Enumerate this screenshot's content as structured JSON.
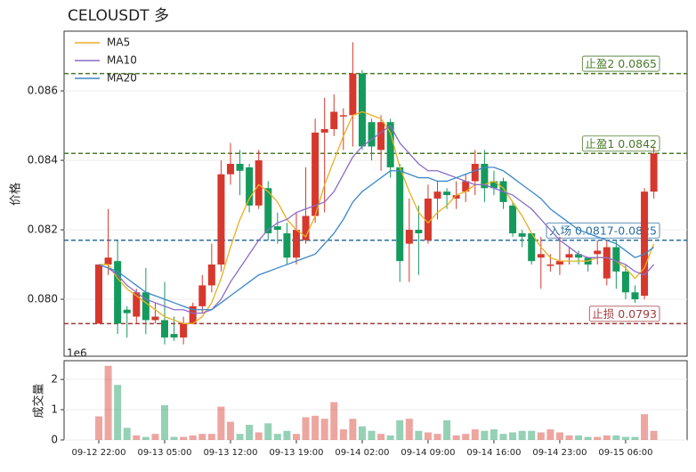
{
  "chart_data": {
    "type": "candlestick",
    "title": "CELOUSDT  多",
    "y_label": "价格",
    "volume_label": "成交量",
    "volume_offset": "1e6",
    "categories": [
      "09-12 22:00",
      null,
      null,
      null,
      null,
      null,
      null,
      "09-13 05:00",
      null,
      null,
      null,
      null,
      null,
      null,
      "09-13 12:00",
      null,
      null,
      null,
      null,
      null,
      null,
      "09-13 19:00",
      null,
      null,
      null,
      null,
      null,
      null,
      "09-14 02:00",
      null,
      null,
      null,
      null,
      null,
      null,
      "09-14 09:00",
      null,
      null,
      null,
      null,
      null,
      null,
      "09-14 16:00",
      null,
      null,
      null,
      null,
      null,
      null,
      "09-14 23:00",
      null,
      null,
      null,
      null,
      null,
      null,
      "09-15 06:00",
      null,
      null,
      null
    ],
    "open": [
      0.0793,
      0.081,
      0.0811,
      0.0797,
      0.0795,
      0.0802,
      0.0794,
      0.0794,
      0.079,
      0.0789,
      0.0793,
      0.0798,
      0.0804,
      0.081,
      0.0836,
      0.0839,
      0.0838,
      0.0827,
      0.0832,
      0.0821,
      0.0819,
      0.0812,
      0.0817,
      0.0824,
      0.0848,
      0.0849,
      0.0853,
      0.0853,
      0.0865,
      0.0851,
      0.0843,
      0.0851,
      0.0838,
      0.0816,
      0.082,
      0.0817,
      0.0829,
      0.0831,
      0.0829,
      0.0831,
      0.0834,
      0.0839,
      0.0834,
      0.0834,
      0.0827,
      0.0819,
      0.0819,
      0.0812,
      0.081,
      0.081,
      0.0812,
      0.0813,
      0.0812,
      0.0813,
      0.0806,
      0.0815,
      0.0808,
      0.0802,
      0.0801,
      0.0831
    ],
    "high": [
      0.081,
      0.0826,
      0.0817,
      0.0798,
      0.0803,
      0.0809,
      0.0799,
      0.0805,
      0.0795,
      0.0795,
      0.0799,
      0.0807,
      0.0816,
      0.084,
      0.0845,
      0.0843,
      0.0839,
      0.0843,
      0.0834,
      0.0825,
      0.0822,
      0.0825,
      0.0838,
      0.0852,
      0.0858,
      0.0859,
      0.0855,
      0.0874,
      0.0866,
      0.0852,
      0.0853,
      0.0852,
      0.0839,
      0.0829,
      0.0827,
      0.0833,
      0.0834,
      0.0832,
      0.0834,
      0.0836,
      0.0843,
      0.0843,
      0.0837,
      0.0835,
      0.0828,
      0.082,
      0.0819,
      0.0818,
      0.0813,
      0.0818,
      0.0815,
      0.0814,
      0.0812,
      0.0817,
      0.0817,
      0.0817,
      0.081,
      0.0804,
      0.0832,
      0.0844
    ],
    "low": [
      0.0793,
      0.0807,
      0.079,
      0.0789,
      0.0793,
      0.079,
      0.0793,
      0.0787,
      0.0788,
      0.0787,
      0.0793,
      0.0796,
      0.0802,
      0.0808,
      0.0833,
      0.083,
      0.0825,
      0.0826,
      0.0817,
      0.0816,
      0.081,
      0.081,
      0.0816,
      0.0822,
      0.0825,
      0.0847,
      0.0843,
      0.0844,
      0.0843,
      0.084,
      0.0837,
      0.0835,
      0.0805,
      0.0805,
      0.0807,
      0.0816,
      0.0823,
      0.0826,
      0.0826,
      0.0828,
      0.083,
      0.0828,
      0.083,
      0.0826,
      0.0818,
      0.0815,
      0.081,
      0.0803,
      0.0808,
      0.0807,
      0.081,
      0.081,
      0.0808,
      0.081,
      0.0804,
      0.0803,
      0.08,
      0.0799,
      0.08,
      0.0829
    ],
    "close": [
      0.081,
      0.0812,
      0.0793,
      0.0796,
      0.0802,
      0.0794,
      0.0795,
      0.0789,
      0.0789,
      0.0793,
      0.0798,
      0.0804,
      0.081,
      0.0836,
      0.0839,
      0.0837,
      0.0827,
      0.084,
      0.0819,
      0.082,
      0.0812,
      0.082,
      0.0824,
      0.0848,
      0.0849,
      0.0854,
      0.0853,
      0.0865,
      0.0844,
      0.0844,
      0.0851,
      0.0838,
      0.0811,
      0.082,
      0.0819,
      0.0829,
      0.0831,
      0.083,
      0.083,
      0.0834,
      0.0839,
      0.0832,
      0.0832,
      0.0828,
      0.0819,
      0.0818,
      0.0811,
      0.0813,
      0.081,
      0.0811,
      0.0813,
      0.0812,
      0.081,
      0.0814,
      0.0815,
      0.0808,
      0.0802,
      0.08,
      0.0831,
      0.0842
    ],
    "volume": [
      0.78,
      2.45,
      1.82,
      0.4,
      0.15,
      0.1,
      0.2,
      1.15,
      0.1,
      0.1,
      0.15,
      0.2,
      0.2,
      1.1,
      0.6,
      0.2,
      0.5,
      0.25,
      0.55,
      0.2,
      0.3,
      0.2,
      0.75,
      0.8,
      0.7,
      1.25,
      0.35,
      0.7,
      0.45,
      0.3,
      0.2,
      0.15,
      0.65,
      0.7,
      0.3,
      0.25,
      0.2,
      0.65,
      0.15,
      0.2,
      0.35,
      0.3,
      0.35,
      0.2,
      0.25,
      0.3,
      0.3,
      0.25,
      0.35,
      0.25,
      0.15,
      0.15,
      0.1,
      0.1,
      0.15,
      0.15,
      0.1,
      0.1,
      0.85,
      0.3
    ],
    "up_color": "#d6382d",
    "down_color": "#149a5c",
    "series": [
      {
        "name": "MA5",
        "color": "#e8b020",
        "values": [
          0.081,
          0.081,
          0.0806,
          0.0803,
          0.0801,
          0.0799,
          0.0797,
          0.0795,
          0.0794,
          0.0793,
          0.0793,
          0.0795,
          0.0799,
          0.0806,
          0.0815,
          0.0823,
          0.0829,
          0.0833,
          0.0831,
          0.0828,
          0.0823,
          0.082,
          0.0818,
          0.0824,
          0.0833,
          0.084,
          0.0847,
          0.0853,
          0.0854,
          0.0853,
          0.0852,
          0.0848,
          0.0838,
          0.0831,
          0.0825,
          0.0822,
          0.0825,
          0.0827,
          0.083,
          0.0831,
          0.0833,
          0.0833,
          0.0834,
          0.0832,
          0.0828,
          0.0824,
          0.0819,
          0.0815,
          0.0812,
          0.0811,
          0.0811,
          0.0811,
          0.0811,
          0.0812,
          0.0812,
          0.0811,
          0.0809,
          0.0806,
          0.0809,
          0.0816
        ]
      },
      {
        "name": "MA10",
        "color": "#8a6cc8",
        "values": [
          0.081,
          0.0809,
          0.0807,
          0.0804,
          0.0802,
          0.08,
          0.0799,
          0.0798,
          0.0797,
          0.0797,
          0.0796,
          0.0796,
          0.0797,
          0.08,
          0.0805,
          0.0809,
          0.0813,
          0.0817,
          0.082,
          0.0822,
          0.0823,
          0.0825,
          0.0826,
          0.0827,
          0.0828,
          0.0831,
          0.0836,
          0.0841,
          0.0844,
          0.0846,
          0.0848,
          0.085,
          0.0845,
          0.0842,
          0.0839,
          0.0837,
          0.0837,
          0.0836,
          0.0835,
          0.0834,
          0.0833,
          0.0833,
          0.0832,
          0.0831,
          0.083,
          0.0828,
          0.0826,
          0.0823,
          0.082,
          0.0817,
          0.0815,
          0.0813,
          0.0812,
          0.0812,
          0.0812,
          0.0811,
          0.081,
          0.0808,
          0.0807,
          0.081
        ]
      },
      {
        "name": "MA20",
        "color": "#3b87c8",
        "values": [
          0.081,
          0.0809,
          0.0808,
          0.0806,
          0.0804,
          0.0802,
          0.0801,
          0.08,
          0.0799,
          0.0798,
          0.0797,
          0.0797,
          0.0797,
          0.0799,
          0.0801,
          0.0803,
          0.0805,
          0.0807,
          0.0808,
          0.0809,
          0.081,
          0.0811,
          0.0812,
          0.0813,
          0.0816,
          0.0819,
          0.0823,
          0.0828,
          0.0831,
          0.0833,
          0.0835,
          0.0837,
          0.0837,
          0.0836,
          0.0835,
          0.0835,
          0.0834,
          0.0834,
          0.0835,
          0.0836,
          0.0837,
          0.0838,
          0.0838,
          0.0837,
          0.0835,
          0.0833,
          0.0831,
          0.0829,
          0.0826,
          0.0824,
          0.0822,
          0.082,
          0.0819,
          0.0818,
          0.0817,
          0.0816,
          0.0814,
          0.0812,
          0.0813,
          0.0815
        ]
      }
    ],
    "levels": [
      {
        "label": "止盈2 0.0865",
        "value": 0.0865,
        "color": "#4a7a2a"
      },
      {
        "label": "止盈1 0.0842",
        "value": 0.0842,
        "color": "#4a7a2a"
      },
      {
        "label": "入场 0.0817-0.0825",
        "value": 0.0817,
        "color": "#2a6ea0"
      },
      {
        "label": "止损 0.0793",
        "value": 0.0793,
        "color": "#a03a3a"
      }
    ],
    "ylim": [
      0.07836,
      0.08772
    ],
    "yticks": [
      {
        "value": 0.08,
        "label": "0.080"
      },
      0.082,
      0.084,
      0.086
    ],
    "vylim": [
      0,
      2.62
    ],
    "vyticks": [
      0,
      1,
      2
    ],
    "grid": true,
    "legend": "upper left"
  }
}
